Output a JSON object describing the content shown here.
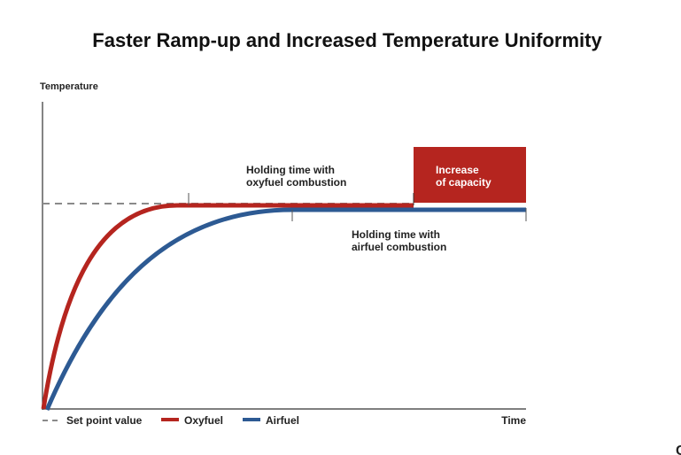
{
  "chart_data": {
    "type": "line",
    "title": "Faster Ramp-up and Increased Temperature Uniformity",
    "ylabel": "Temperature",
    "xlabel": "Time",
    "grid": false,
    "legend_placement": "bottom-left",
    "legend": [
      {
        "label": "Set point value",
        "style": "dashed",
        "color": "#8a8a8a"
      },
      {
        "label": "Oxyfuel",
        "style": "solid",
        "color": "#b5251f"
      },
      {
        "label": "Airfuel",
        "style": "solid",
        "color": "#2d5a93"
      }
    ],
    "series": [
      {
        "name": "Oxyfuel",
        "color": "#b5251f",
        "shape": "fast rise to set point, then holds"
      },
      {
        "name": "Airfuel",
        "color": "#2d5a93",
        "shape": "slower rise to set point, then holds"
      }
    ],
    "annotations": {
      "oxyfuel_holding": [
        "Holding time with",
        "oxyfuel combustion"
      ],
      "airfuel_holding": [
        "Holding time with",
        "airfuel combustion"
      ],
      "capacity_box": [
        "Increase",
        "of capacity"
      ],
      "capacity_box_color": "#b5251f"
    }
  },
  "page_edge_text": "C"
}
